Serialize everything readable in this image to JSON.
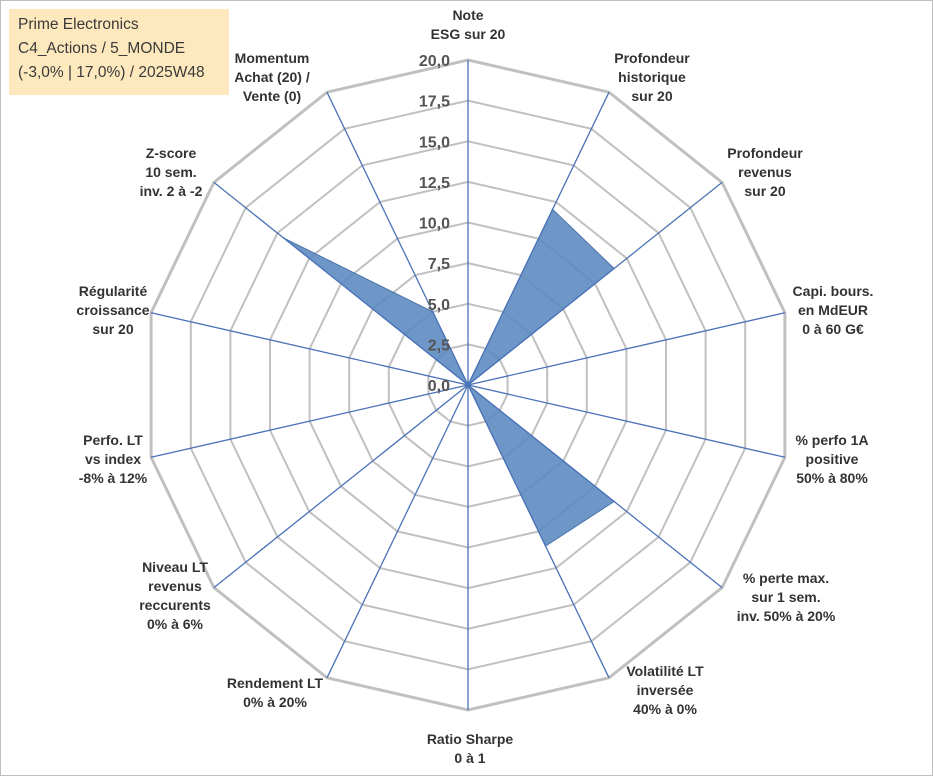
{
  "header": {
    "company": "Prime Electronics",
    "category": "C4_Actions / 5_MONDE",
    "period": "(-3,0% | 17,0%) / 2025W48"
  },
  "colors": {
    "fill": "#5a87be",
    "spoke": "#4a72b8",
    "grid": "#c0c0c0",
    "header_bg": "#fde9bd"
  },
  "chart_data": {
    "type": "radar",
    "scale": {
      "min": 0,
      "max": 20,
      "step": 2.5
    },
    "tick_labels": [
      "0,0",
      "2,5",
      "5,0",
      "7,5",
      "10,0",
      "12,5",
      "15,0",
      "17,5",
      "20,0"
    ],
    "grid": true,
    "categories": [
      [
        "Note",
        "ESG sur 20"
      ],
      [
        "Profondeur",
        "historique",
        "sur 20"
      ],
      [
        "Profondeur",
        "revenus",
        "sur 20"
      ],
      [
        "Capi. bours.",
        "en MdEUR",
        "0 à 60 G€"
      ],
      [
        "% perfo 1A",
        "positive",
        "50% à 80%"
      ],
      [
        "% perte max.",
        "sur 1 sem.",
        "inv. 50% à 20%"
      ],
      [
        "Volatilité LT",
        "inversée",
        "40% à 0%"
      ],
      [
        "Ratio Sharpe",
        "0 à 1"
      ],
      [
        "Rendement LT",
        "0% à 20%"
      ],
      [
        "Niveau LT",
        "revenus",
        "reccurents",
        "0% à 6%"
      ],
      [
        "Perfo. LT",
        "vs index",
        "-8% à 12%"
      ],
      [
        "Régularité",
        "croissance",
        "sur 20"
      ],
      [
        "Z-score",
        "10 sem.",
        "inv. 2 à -2"
      ],
      [
        "Momentum",
        "Achat (20) /",
        "Vente (0)"
      ]
    ],
    "values": [
      0,
      12,
      11.5,
      0,
      0,
      11.5,
      11,
      0,
      0,
      0,
      0,
      0,
      14.5,
      5
    ]
  }
}
